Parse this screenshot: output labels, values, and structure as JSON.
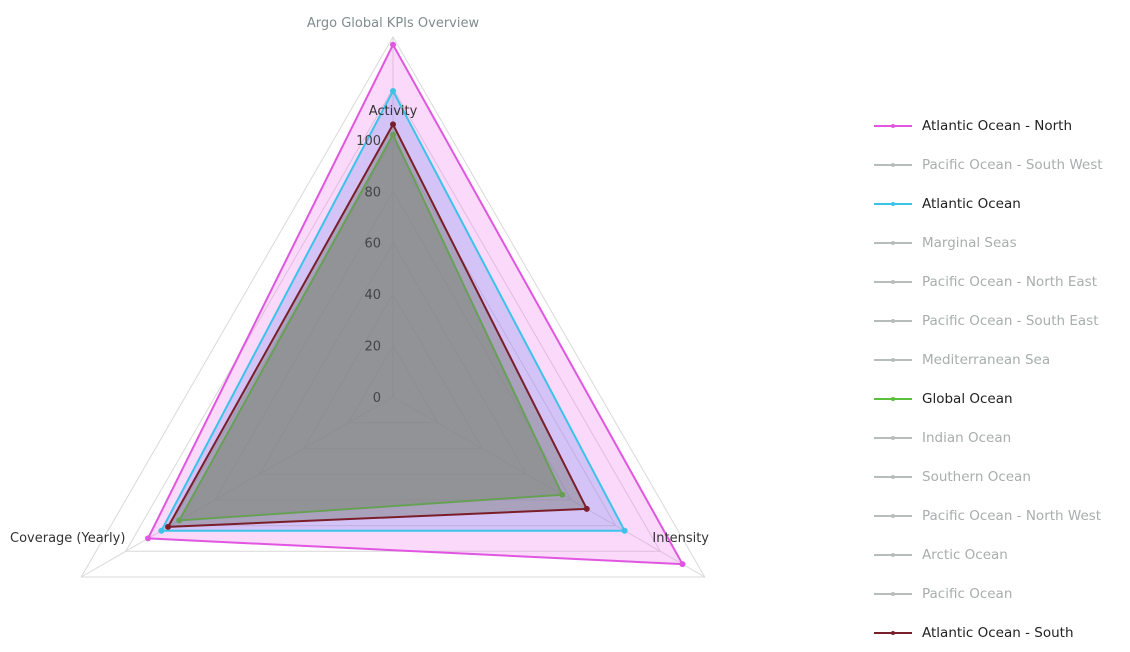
{
  "chart_data": {
    "type": "radar",
    "title": "Argo Global KPIs Overview",
    "axes": [
      "Activity",
      "Intensity",
      "Coverage (Yearly)"
    ],
    "rlim": [
      0,
      140
    ],
    "ticks": [
      0,
      20,
      40,
      60,
      80,
      100
    ],
    "tick_labels": [
      "0",
      "20",
      "40",
      "60",
      "80",
      "100"
    ],
    "legend_position": "right",
    "series": [
      {
        "name": "Atlantic Ocean - North",
        "visible": true,
        "color": "#e056e0",
        "fill": "rgba(236,120,236,0.28)",
        "values": [
          137,
          130,
          110
        ]
      },
      {
        "name": "Pacific Ocean - South West",
        "visible": false,
        "color": "#b7bcbc"
      },
      {
        "name": "Atlantic Ocean",
        "visible": true,
        "color": "#3cc3ea",
        "fill": "rgba(110,140,236,0.28)",
        "values": [
          119,
          104,
          104
        ]
      },
      {
        "name": "Marginal Seas",
        "visible": false,
        "color": "#b7bcbc"
      },
      {
        "name": "Pacific Ocean - North East",
        "visible": false,
        "color": "#b7bcbc"
      },
      {
        "name": "Pacific Ocean - South East",
        "visible": false,
        "color": "#b7bcbc"
      },
      {
        "name": "Mediterranean Sea",
        "visible": false,
        "color": "#b7bcbc"
      },
      {
        "name": "Global Ocean",
        "visible": true,
        "color": "#5bbf3c",
        "fill": "rgba(130,150,120,0.55)",
        "values": [
          102,
          76,
          96
        ]
      },
      {
        "name": "Indian Ocean",
        "visible": false,
        "color": "#b7bcbc"
      },
      {
        "name": "Southern Ocean",
        "visible": false,
        "color": "#b7bcbc"
      },
      {
        "name": "Pacific Ocean - North West",
        "visible": false,
        "color": "#b7bcbc"
      },
      {
        "name": "Arctic Ocean",
        "visible": false,
        "color": "#b7bcbc"
      },
      {
        "name": "Pacific Ocean",
        "visible": false,
        "color": "#b7bcbc"
      },
      {
        "name": "Atlantic Ocean - South",
        "visible": true,
        "color": "#7a1f2a",
        "fill": "rgba(120,120,120,0.45)",
        "values": [
          106,
          87,
          101
        ]
      }
    ]
  }
}
